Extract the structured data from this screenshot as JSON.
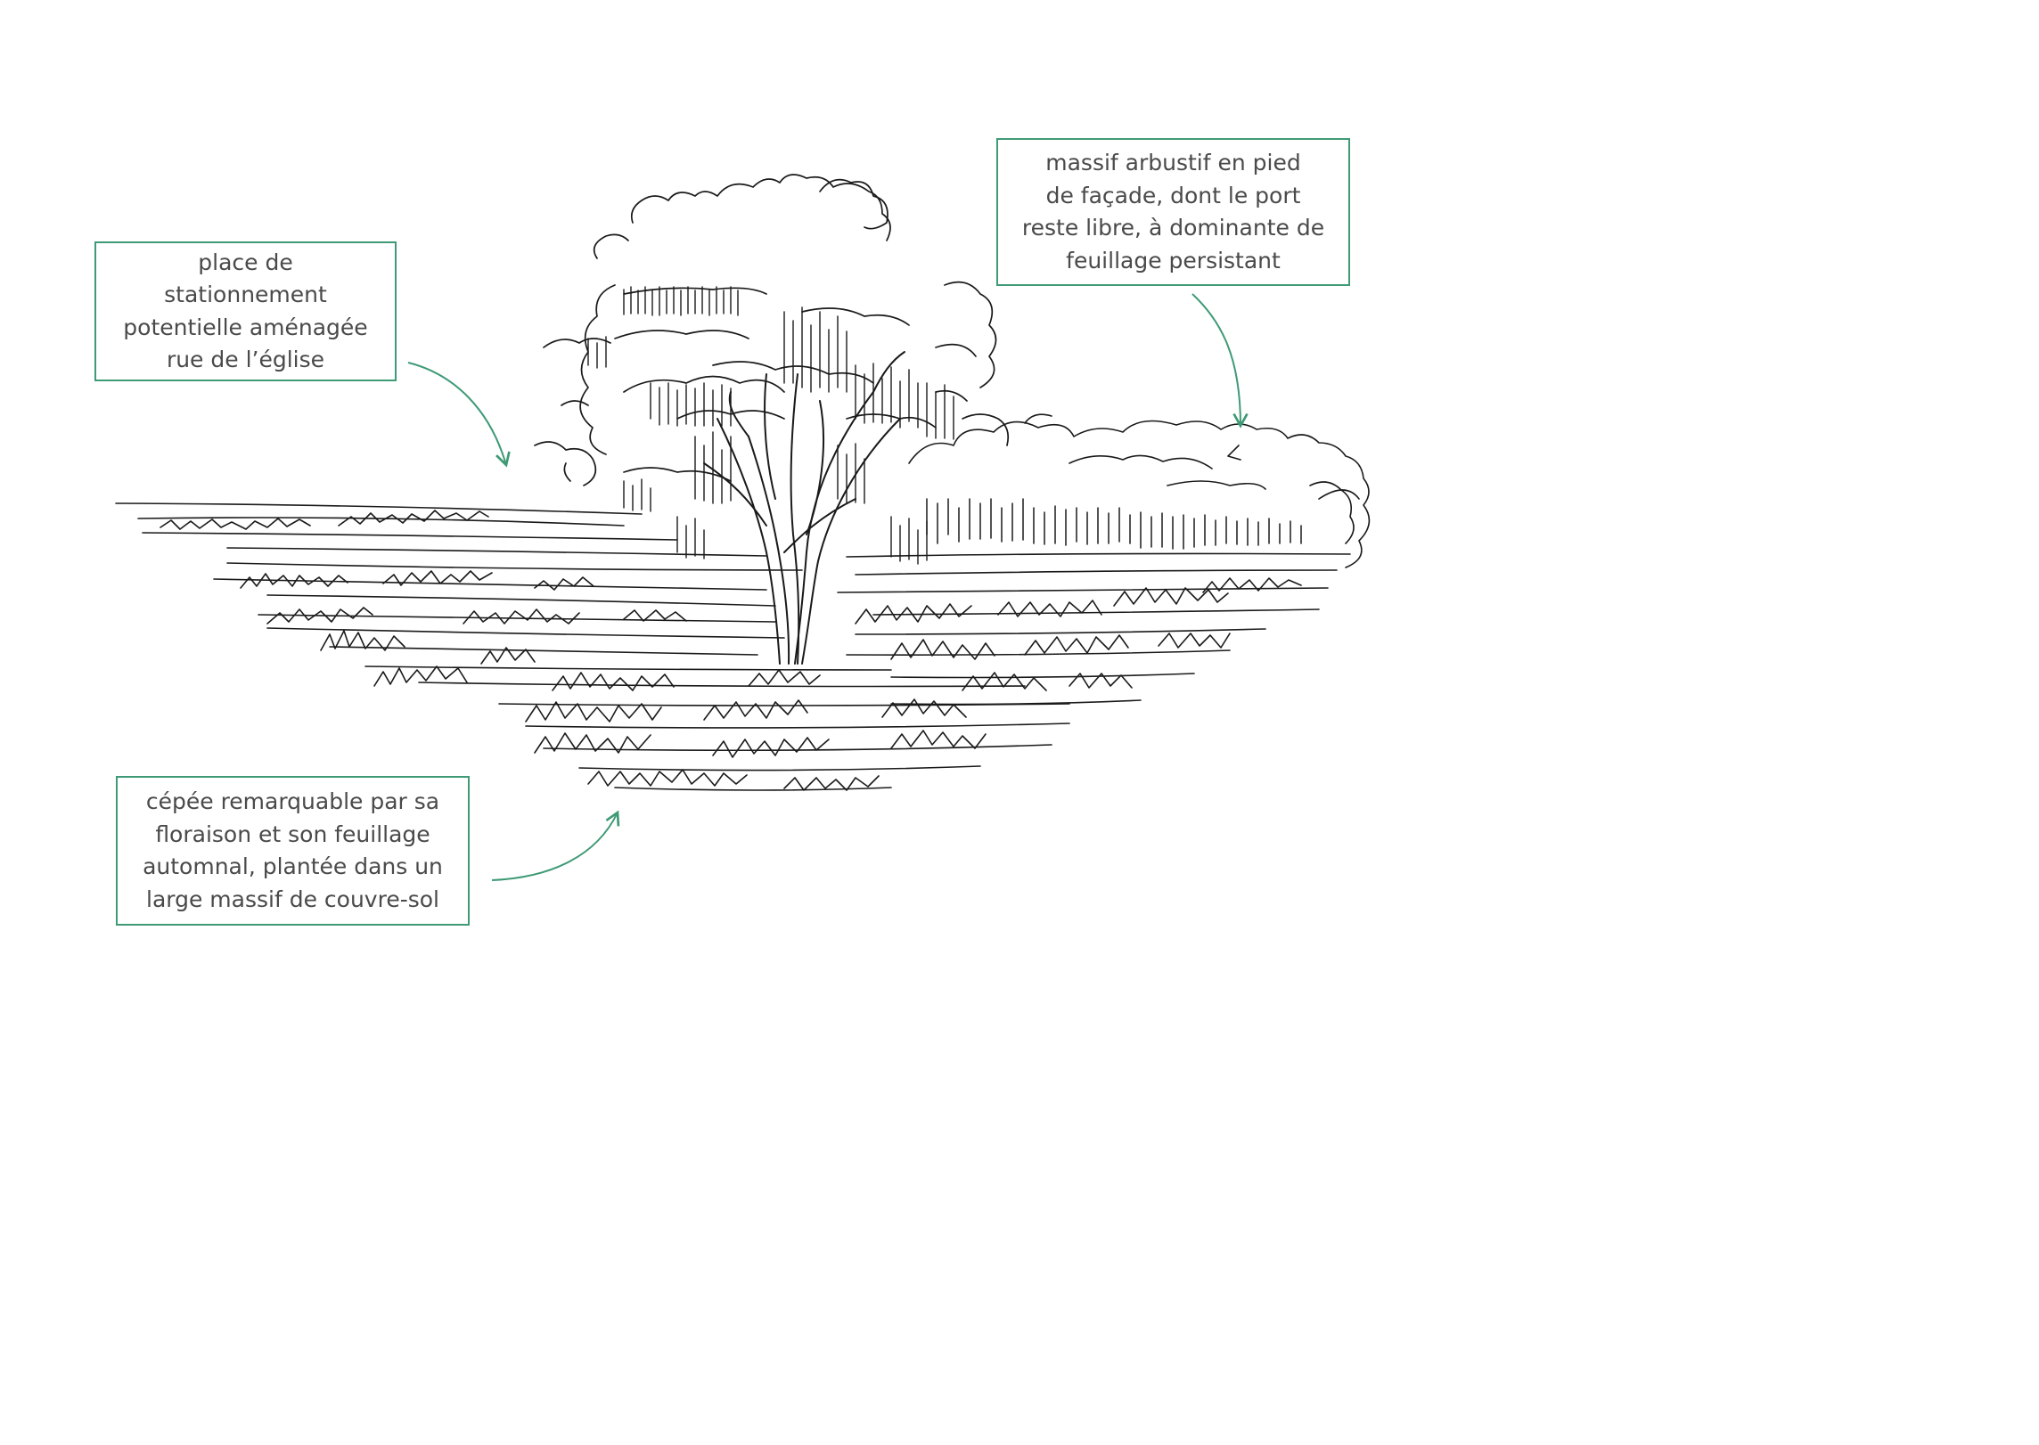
{
  "callouts": {
    "parking": "place de\nstationnement\npotentielle aménagée\nrue de l’église",
    "shrub": "massif arbustif en pied\nde façade, dont le port\nreste libre, à dominante de\nfeuillage persistant",
    "tree": "cépée remarquable par sa\nfloraison et son feuillage\nautomnal, plantée dans un\nlarge massif de couvre-sol"
  },
  "colors": {
    "accent": "#3f9a76",
    "ink": "#1a1a1a",
    "text": "#4a4a4a"
  },
  "icons": {
    "arrow": "curved-arrow",
    "illustration": "tree-sketch"
  }
}
